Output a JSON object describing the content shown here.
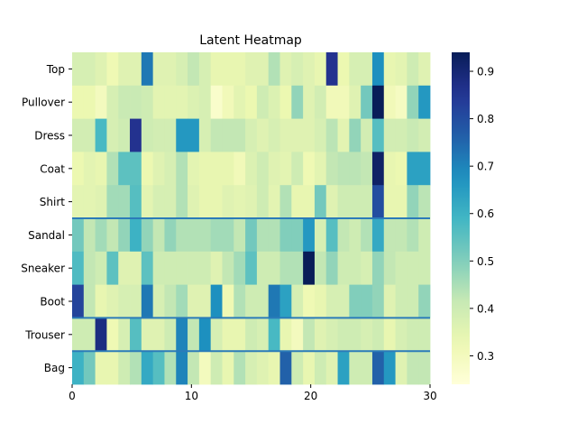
{
  "chart_data": {
    "type": "heatmap",
    "title": "Latent Heatmap",
    "xlabel": "",
    "ylabel": "",
    "xlim": [
      0,
      30
    ],
    "x_ticks": [
      "0",
      "10",
      "20",
      "30"
    ],
    "y_labels": [
      "Top",
      "Pullover",
      "Dress",
      "Coat",
      "Shirt",
      "Sandal",
      "Sneaker",
      "Boot",
      "Trouser",
      "Bag"
    ],
    "colorbar": {
      "min": 0.24,
      "max": 0.94,
      "ticks": [
        "0.3",
        "0.4",
        "0.5",
        "0.6",
        "0.7",
        "0.8",
        "0.9"
      ],
      "colormap": "YlGnBu"
    },
    "separators_after_rows": [
      4,
      7,
      8
    ],
    "separator_color": "#2b7bb9",
    "grid": false,
    "matrix": [
      [
        0.38,
        0.38,
        0.36,
        0.32,
        0.36,
        0.36,
        0.72,
        0.36,
        0.36,
        0.38,
        0.42,
        0.38,
        0.34,
        0.34,
        0.34,
        0.36,
        0.36,
        0.44,
        0.36,
        0.38,
        0.36,
        0.34,
        0.86,
        0.33,
        0.38,
        0.38,
        0.68,
        0.34,
        0.35,
        0.4,
        0.36
      ],
      [
        0.33,
        0.33,
        0.3,
        0.38,
        0.41,
        0.41,
        0.4,
        0.35,
        0.35,
        0.35,
        0.37,
        0.38,
        0.27,
        0.31,
        0.35,
        0.33,
        0.4,
        0.37,
        0.33,
        0.48,
        0.36,
        0.39,
        0.31,
        0.31,
        0.36,
        0.52,
        0.94,
        0.31,
        0.29,
        0.48,
        0.66
      ],
      [
        0.39,
        0.39,
        0.58,
        0.38,
        0.4,
        0.86,
        0.4,
        0.39,
        0.39,
        0.66,
        0.66,
        0.38,
        0.42,
        0.42,
        0.42,
        0.38,
        0.36,
        0.38,
        0.36,
        0.36,
        0.36,
        0.38,
        0.43,
        0.35,
        0.48,
        0.39,
        0.56,
        0.39,
        0.39,
        0.41,
        0.39
      ],
      [
        0.33,
        0.35,
        0.34,
        0.44,
        0.55,
        0.55,
        0.33,
        0.36,
        0.38,
        0.44,
        0.35,
        0.34,
        0.34,
        0.34,
        0.31,
        0.37,
        0.4,
        0.36,
        0.35,
        0.4,
        0.32,
        0.35,
        0.42,
        0.43,
        0.43,
        0.42,
        0.92,
        0.34,
        0.33,
        0.64,
        0.64
      ],
      [
        0.35,
        0.35,
        0.36,
        0.46,
        0.46,
        0.56,
        0.35,
        0.38,
        0.38,
        0.44,
        0.36,
        0.34,
        0.34,
        0.36,
        0.35,
        0.36,
        0.4,
        0.35,
        0.44,
        0.34,
        0.34,
        0.52,
        0.36,
        0.4,
        0.4,
        0.4,
        0.8,
        0.34,
        0.34,
        0.48,
        0.43
      ],
      [
        0.52,
        0.42,
        0.46,
        0.42,
        0.48,
        0.6,
        0.48,
        0.42,
        0.48,
        0.44,
        0.44,
        0.44,
        0.46,
        0.46,
        0.42,
        0.52,
        0.44,
        0.44,
        0.5,
        0.5,
        0.66,
        0.38,
        0.56,
        0.42,
        0.4,
        0.44,
        0.62,
        0.42,
        0.42,
        0.44,
        0.4
      ],
      [
        0.57,
        0.42,
        0.4,
        0.55,
        0.36,
        0.36,
        0.55,
        0.4,
        0.4,
        0.4,
        0.4,
        0.4,
        0.36,
        0.42,
        0.46,
        0.55,
        0.4,
        0.4,
        0.44,
        0.44,
        0.94,
        0.42,
        0.48,
        0.4,
        0.4,
        0.38,
        0.48,
        0.42,
        0.4,
        0.4,
        0.4
      ],
      [
        0.82,
        0.42,
        0.34,
        0.36,
        0.38,
        0.38,
        0.72,
        0.38,
        0.42,
        0.46,
        0.36,
        0.36,
        0.68,
        0.32,
        0.44,
        0.4,
        0.4,
        0.72,
        0.64,
        0.38,
        0.32,
        0.34,
        0.38,
        0.38,
        0.5,
        0.5,
        0.48,
        0.36,
        0.4,
        0.4,
        0.48
      ],
      [
        0.4,
        0.4,
        0.88,
        0.32,
        0.38,
        0.56,
        0.36,
        0.36,
        0.4,
        0.7,
        0.42,
        0.68,
        0.38,
        0.34,
        0.34,
        0.4,
        0.38,
        0.58,
        0.34,
        0.3,
        0.42,
        0.36,
        0.38,
        0.4,
        0.4,
        0.38,
        0.4,
        0.34,
        0.38,
        0.4,
        0.4
      ],
      [
        0.6,
        0.52,
        0.34,
        0.34,
        0.4,
        0.44,
        0.62,
        0.56,
        0.44,
        0.7,
        0.42,
        0.3,
        0.4,
        0.34,
        0.44,
        0.38,
        0.36,
        0.34,
        0.76,
        0.4,
        0.34,
        0.4,
        0.36,
        0.64,
        0.4,
        0.4,
        0.76,
        0.66,
        0.36,
        0.42,
        0.42
      ]
    ]
  }
}
